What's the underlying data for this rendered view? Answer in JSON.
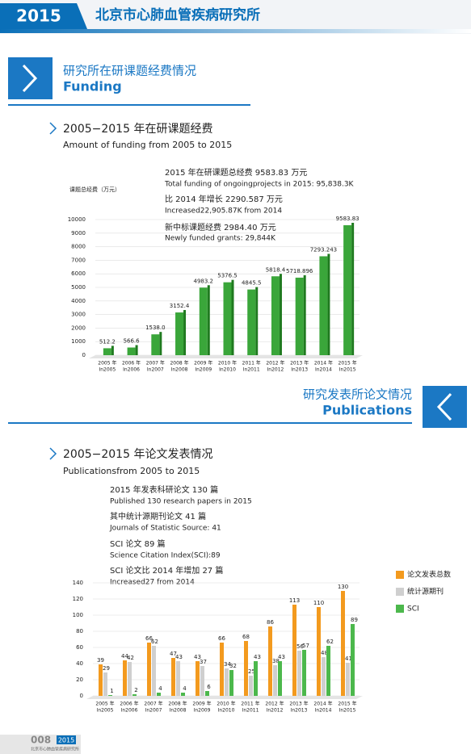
{
  "header": {
    "year": "2015",
    "title": "北京市心肺血管疾病研究所"
  },
  "section1": {
    "title": "研究所在研课题经费情况",
    "title_en": "Funding"
  },
  "section2": {
    "title": "研究发表所论文情况",
    "title_en": "Publications"
  },
  "chart_data": [
    {
      "type": "bar",
      "title": "2005−2015 年在研课题经费",
      "subtitle": "Amount of funding from 2005 to 2015",
      "y_label": "课题总经费（万元）",
      "annotations": [
        "2015 年在研课题总经费 9583.83 万元",
        "Total funding of ongoingprojects in 2015: 95,838.3K",
        "比 2014 年增长 2290.587 万元",
        "Increased22,905.87K from 2014",
        "新中标课题经费 2984.40 万元",
        "Newly funded grants: 29,844K"
      ],
      "categories": [
        "2005 年",
        "2006 年",
        "2007 年",
        "2008 年",
        "2009 年",
        "2010 年",
        "2011 年",
        "2012 年",
        "2013 年",
        "2014 年",
        "2015 年"
      ],
      "categories_en": [
        "In2005",
        "In2006",
        "In2007",
        "In2008",
        "In2009",
        "In2010",
        "In2011",
        "In2012",
        "In2013",
        "In2014",
        "In2015"
      ],
      "values": [
        512.2,
        566.6,
        1538.0,
        3152.4,
        4983.2,
        5376.5,
        4845.5,
        5818.4,
        5718.896,
        7293.243,
        9583.83
      ],
      "value_labels": [
        "512.2",
        "566.6",
        "1538.0",
        "3152.4",
        "4983.2",
        "5376.5",
        "4845.5",
        "5818.4",
        "5718.896",
        "7293.243",
        "9583.83"
      ],
      "color": "#3aa63a",
      "ylim": [
        0,
        10000
      ],
      "yticks": [
        0,
        1000,
        2000,
        3000,
        4000,
        5000,
        6000,
        7000,
        8000,
        9000,
        10000
      ],
      "grid": true
    },
    {
      "type": "grouped_bar",
      "title": "2005−2015 年论文发表情况",
      "subtitle": "Publicationsfrom 2005 to 2015",
      "annotations": [
        "2015 年发表科研论文 130 篇",
        "Published 130 research papers in 2015",
        "其中统计源期刊论文 41 篇",
        "Journals of Statistic Source: 41",
        "SCI 论文 89 篇",
        "Science Citation Index(SCI):89",
        "SCI 论文比 2014 年增加 27 篇",
        "Increased27 from 2014"
      ],
      "categories": [
        "2005 年",
        "2006 年",
        "2007 年",
        "2008 年",
        "2009 年",
        "2010 年",
        "2011 年",
        "2012 年",
        "2013 年",
        "2014 年",
        "2015 年"
      ],
      "categories_en": [
        "In2005",
        "In2006",
        "In2007",
        "In2008",
        "In2009",
        "In2010",
        "In2011",
        "In2012",
        "In2013",
        "In2014",
        "In2015"
      ],
      "series": [
        {
          "name": "论文发表总数",
          "color": "#f39a1e",
          "values": [
            39,
            44,
            66,
            47,
            43,
            66,
            68,
            86,
            113,
            110,
            130
          ]
        },
        {
          "name": "统计源期刊",
          "color": "#cfcfcf",
          "values": [
            29,
            42,
            62,
            43,
            37,
            34,
            25,
            38,
            56,
            48,
            41
          ]
        },
        {
          "name": "SCI",
          "color": "#4cb84c",
          "values": [
            1,
            2,
            4,
            4,
            6,
            32,
            43,
            43,
            57,
            62,
            89
          ]
        }
      ],
      "ylim": [
        0,
        140
      ],
      "yticks": [
        0,
        20,
        40,
        60,
        80,
        100,
        120,
        140
      ],
      "grid": true,
      "legend": "right"
    }
  ],
  "footer": {
    "page": "008",
    "year": "2015",
    "org": "北京市心肺血管疾病研究所"
  }
}
